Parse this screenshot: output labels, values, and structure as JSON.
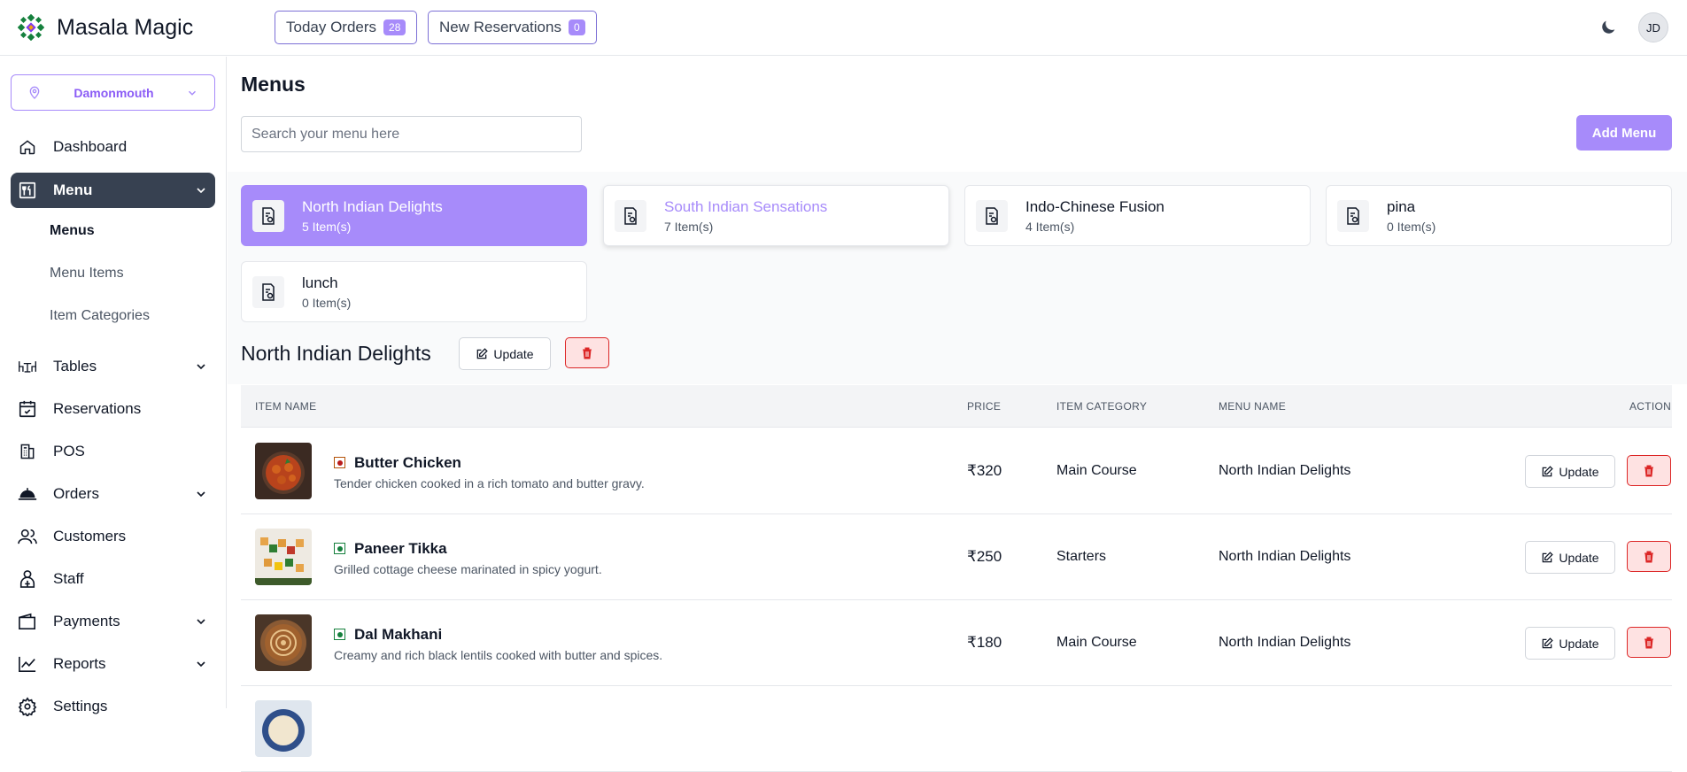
{
  "brand": {
    "name": "Masala Magic"
  },
  "topbar": {
    "today_orders_label": "Today Orders",
    "today_orders_count": "28",
    "new_reservations_label": "New Reservations",
    "new_reservations_count": "0",
    "avatar_initials": "JD"
  },
  "sidebar": {
    "location": "Damonmouth",
    "items": [
      {
        "label": "Dashboard",
        "icon": "home-icon"
      },
      {
        "label": "Menu",
        "icon": "menu-icon"
      },
      {
        "label": "Tables",
        "icon": "table-icon"
      },
      {
        "label": "Reservations",
        "icon": "calendar-icon"
      },
      {
        "label": "POS",
        "icon": "pos-icon"
      },
      {
        "label": "Orders",
        "icon": "cloche-icon"
      },
      {
        "label": "Customers",
        "icon": "users-icon"
      },
      {
        "label": "Staff",
        "icon": "staff-icon"
      },
      {
        "label": "Payments",
        "icon": "wallet-icon"
      },
      {
        "label": "Reports",
        "icon": "chart-icon"
      },
      {
        "label": "Settings",
        "icon": "gear-icon"
      }
    ],
    "menu_sub": [
      "Menus",
      "Menu Items",
      "Item Categories"
    ]
  },
  "main": {
    "title": "Menus",
    "search_placeholder": "Search your menu here",
    "add_menu_label": "Add Menu",
    "menus": [
      {
        "name": "North Indian Delights",
        "count": "5 Item(s)"
      },
      {
        "name": "South Indian Sensations",
        "count": "7 Item(s)"
      },
      {
        "name": "Indo-Chinese Fusion",
        "count": "4 Item(s)"
      },
      {
        "name": "pina",
        "count": "0 Item(s)"
      },
      {
        "name": "lunch",
        "count": "0 Item(s)"
      }
    ],
    "selected_menu_title": "North Indian Delights",
    "update_label": "Update",
    "table": {
      "headers": [
        "ITEM NAME",
        "PRICE",
        "ITEM CATEGORY",
        "MENU NAME",
        "ACTION"
      ],
      "rows": [
        {
          "name": "Butter Chicken",
          "desc": "Tender chicken cooked in a rich tomato and butter gravy.",
          "price": "₹320",
          "category": "Main Course",
          "menu": "North Indian Delights",
          "type": "non-veg"
        },
        {
          "name": "Paneer Tikka",
          "desc": "Grilled cottage cheese marinated in spicy yogurt.",
          "price": "₹250",
          "category": "Starters",
          "menu": "North Indian Delights",
          "type": "veg"
        },
        {
          "name": "Dal Makhani",
          "desc": "Creamy and rich black lentils cooked with butter and spices.",
          "price": "₹180",
          "category": "Main Course",
          "menu": "North Indian Delights",
          "type": "veg"
        }
      ]
    }
  },
  "colors": {
    "accent": "#a78bfa",
    "active_nav": "#374151",
    "danger": "#dc2626"
  }
}
